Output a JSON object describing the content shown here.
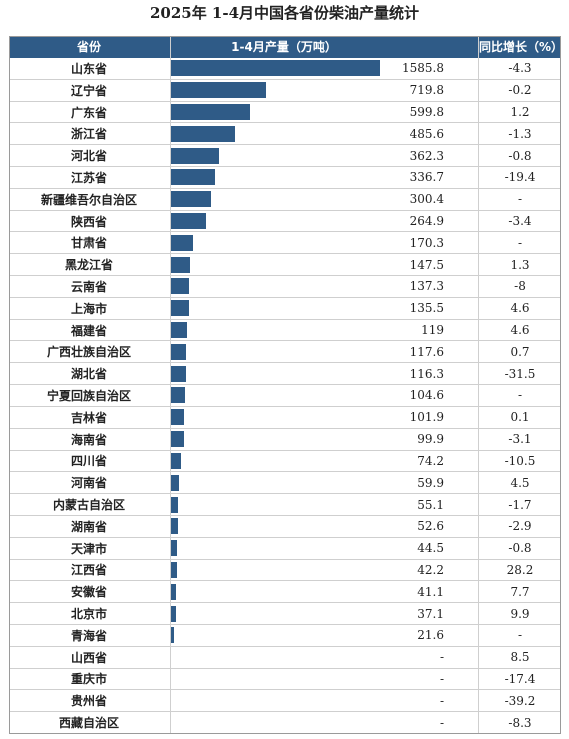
{
  "title": "2025年 1-4月中国各省份柴油产量统计",
  "header": {
    "province": "省份",
    "production": "1-4月产量（万吨）",
    "growth": "同比增长（%）"
  },
  "colors": {
    "bar": "#2f5b87",
    "header_bg": "#2f5b87"
  },
  "chart_data": {
    "type": "table",
    "title": "2025年 1-4月中国各省份柴油产量统计",
    "columns": [
      "省份",
      "1-4月产量（万吨）",
      "同比增长（%）"
    ],
    "rows": [
      {
        "province": "山东省",
        "production": "1585.8",
        "value": 1585.8,
        "growth": "-4.3"
      },
      {
        "province": "辽宁省",
        "production": "719.8",
        "value": 719.8,
        "growth": "-0.2"
      },
      {
        "province": "广东省",
        "production": "599.8",
        "value": 599.8,
        "growth": "1.2"
      },
      {
        "province": "浙江省",
        "production": "485.6",
        "value": 485.6,
        "growth": "-1.3"
      },
      {
        "province": "河北省",
        "production": "362.3",
        "value": 362.3,
        "growth": "-0.8"
      },
      {
        "province": "江苏省",
        "production": "336.7",
        "value": 336.7,
        "growth": "-19.4"
      },
      {
        "province": "新疆维吾尔自治区",
        "production": "300.4",
        "value": 300.4,
        "growth": "-"
      },
      {
        "province": "陕西省",
        "production": "264.9",
        "value": 264.9,
        "growth": "-3.4"
      },
      {
        "province": "甘肃省",
        "production": "170.3",
        "value": 170.3,
        "growth": "-"
      },
      {
        "province": "黑龙江省",
        "production": "147.5",
        "value": 147.5,
        "growth": "1.3"
      },
      {
        "province": "云南省",
        "production": "137.3",
        "value": 137.3,
        "growth": "-8"
      },
      {
        "province": "上海市",
        "production": "135.5",
        "value": 135.5,
        "growth": "4.6"
      },
      {
        "province": "福建省",
        "production": "119",
        "value": 119,
        "growth": "4.6"
      },
      {
        "province": "广西壮族自治区",
        "production": "117.6",
        "value": 117.6,
        "growth": "0.7"
      },
      {
        "province": "湖北省",
        "production": "116.3",
        "value": 116.3,
        "growth": "-31.5"
      },
      {
        "province": "宁夏回族自治区",
        "production": "104.6",
        "value": 104.6,
        "growth": "-"
      },
      {
        "province": "吉林省",
        "production": "101.9",
        "value": 101.9,
        "growth": "0.1"
      },
      {
        "province": "海南省",
        "production": "99.9",
        "value": 99.9,
        "growth": "-3.1"
      },
      {
        "province": "四川省",
        "production": "74.2",
        "value": 74.2,
        "growth": "-10.5"
      },
      {
        "province": "河南省",
        "production": "59.9",
        "value": 59.9,
        "growth": "4.5"
      },
      {
        "province": "内蒙古自治区",
        "production": "55.1",
        "value": 55.1,
        "growth": "-1.7"
      },
      {
        "province": "湖南省",
        "production": "52.6",
        "value": 52.6,
        "growth": "-2.9"
      },
      {
        "province": "天津市",
        "production": "44.5",
        "value": 44.5,
        "growth": "-0.8"
      },
      {
        "province": "江西省",
        "production": "42.2",
        "value": 42.2,
        "growth": "28.2"
      },
      {
        "province": "安徽省",
        "production": "41.1",
        "value": 41.1,
        "growth": "7.7"
      },
      {
        "province": "北京市",
        "production": "37.1",
        "value": 37.1,
        "growth": "9.9"
      },
      {
        "province": "青海省",
        "production": "21.6",
        "value": 21.6,
        "growth": "-"
      },
      {
        "province": "山西省",
        "production": "-",
        "value": null,
        "growth": "8.5"
      },
      {
        "province": "重庆市",
        "production": "-",
        "value": null,
        "growth": "-17.4"
      },
      {
        "province": "贵州省",
        "production": "-",
        "value": null,
        "growth": "-39.2"
      },
      {
        "province": "西藏自治区",
        "production": "-",
        "value": null,
        "growth": "-8.3"
      }
    ]
  }
}
